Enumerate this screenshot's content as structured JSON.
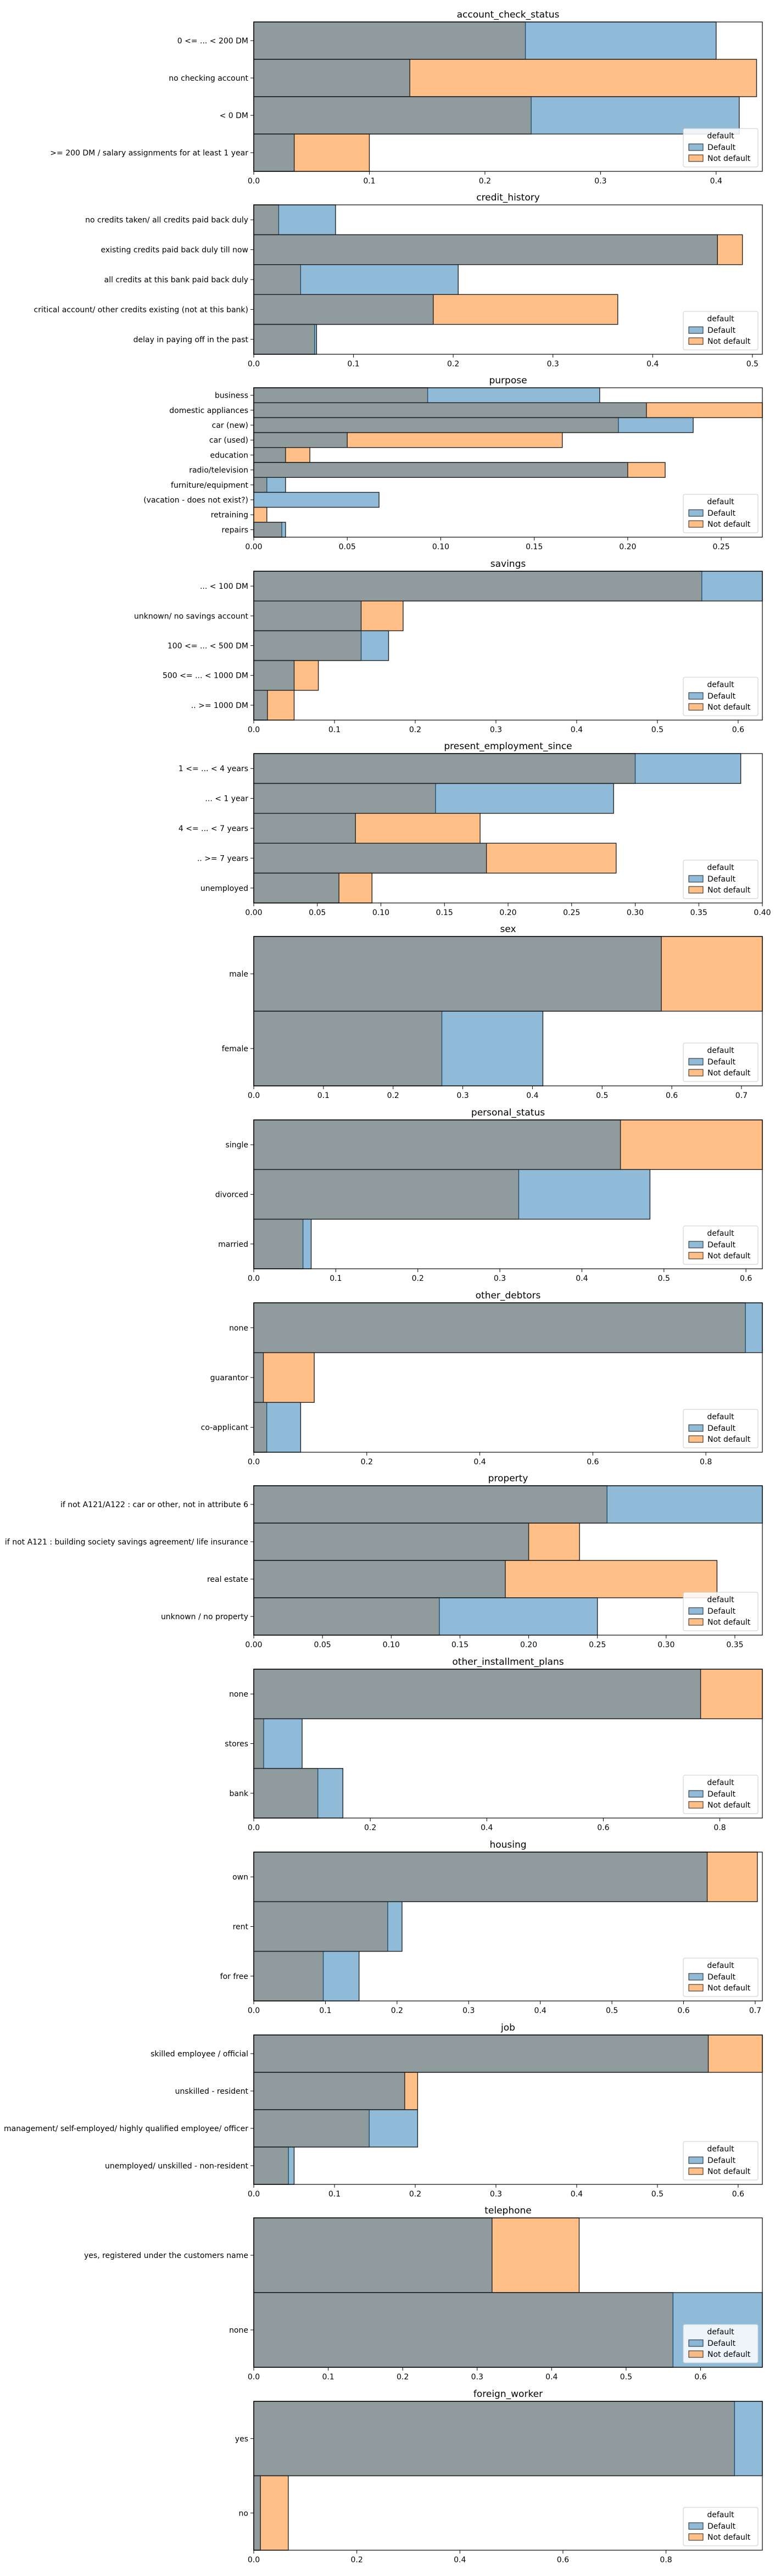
{
  "legend": {
    "title": "default",
    "items": [
      "Default",
      "Not default"
    ]
  },
  "colors": {
    "default_fill": "#1f77b4",
    "not_default_fill": "#ff7f0e",
    "overlap_hint": "#8b9497",
    "frame": "#000000"
  },
  "chart_data": [
    {
      "type": "bar",
      "orientation": "horizontal",
      "title": "account_check_status",
      "categories": [
        "0 <= ... < 200 DM",
        "no checking account",
        "< 0 DM",
        ">= 200 DM / salary assignments for at least 1 year"
      ],
      "series": [
        {
          "name": "Default",
          "values": [
            0.4,
            0.135,
            0.42,
            0.035
          ]
        },
        {
          "name": "Not default",
          "values": [
            0.235,
            0.435,
            0.24,
            0.1
          ]
        }
      ],
      "xticks": [
        "0.0",
        "0.1",
        "0.2",
        "0.3",
        "0.4"
      ],
      "xlim": [
        0,
        0.44
      ],
      "legend_position": "bottom-right"
    },
    {
      "type": "bar",
      "orientation": "horizontal",
      "title": "credit_history",
      "categories": [
        "no credits taken/ all credits paid back duly",
        "existing credits paid back duly till now",
        "all credits at this bank paid back duly",
        "critical account/ other credits existing (not at this bank)",
        "delay in paying off in the past"
      ],
      "series": [
        {
          "name": "Default",
          "values": [
            0.082,
            0.465,
            0.205,
            0.18,
            0.063
          ]
        },
        {
          "name": "Not default",
          "values": [
            0.025,
            0.49,
            0.047,
            0.365,
            0.061
          ]
        }
      ],
      "xticks": [
        "0.0",
        "0.1",
        "0.2",
        "0.3",
        "0.4",
        "0.5"
      ],
      "xlim": [
        0,
        0.51
      ],
      "legend_position": "bottom-right"
    },
    {
      "type": "bar",
      "orientation": "horizontal",
      "title": "purpose",
      "categories": [
        "business",
        "domestic appliances",
        "car (new)",
        "car (used)",
        "education",
        "radio/television",
        "furniture/equipment",
        "(vacation - does not exist?)",
        "retraining",
        "repairs"
      ],
      "series": [
        {
          "name": "Default",
          "values": [
            0.185,
            0.21,
            0.235,
            0.05,
            0.017,
            0.2,
            0.017,
            0.067,
            0.0,
            0.017
          ]
        },
        {
          "name": "Not default",
          "values": [
            0.093,
            0.272,
            0.195,
            0.165,
            0.03,
            0.22,
            0.007,
            0.0,
            0.007,
            0.015
          ]
        }
      ],
      "xticks": [
        "0.00",
        "0.05",
        "0.10",
        "0.15",
        "0.20",
        "0.25"
      ],
      "xlim": [
        0,
        0.272
      ],
      "legend_position": "bottom-right"
    },
    {
      "type": "bar",
      "orientation": "horizontal",
      "title": "savings",
      "categories": [
        "... < 100 DM",
        "unknown/ no savings account",
        "100 <= ... < 500 DM",
        "500 <= ... < 1000 DM",
        ".. >= 1000 DM"
      ],
      "series": [
        {
          "name": "Default",
          "values": [
            0.63,
            0.133,
            0.167,
            0.05,
            0.017
          ]
        },
        {
          "name": "Not default",
          "values": [
            0.555,
            0.185,
            0.133,
            0.08,
            0.05
          ]
        }
      ],
      "xticks": [
        "0.0",
        "0.1",
        "0.2",
        "0.3",
        "0.4",
        "0.5",
        "0.6"
      ],
      "xlim": [
        0,
        0.63
      ],
      "legend_position": "bottom-right"
    },
    {
      "type": "bar",
      "orientation": "horizontal",
      "title": "present_employment_since",
      "categories": [
        "1 <= ... < 4 years",
        "... < 1 year",
        "4 <= ... < 7 years",
        ".. >= 7 years",
        "unemployed"
      ],
      "series": [
        {
          "name": "Default",
          "values": [
            0.383,
            0.283,
            0.08,
            0.183,
            0.067
          ]
        },
        {
          "name": "Not default",
          "values": [
            0.3,
            0.143,
            0.178,
            0.285,
            0.093
          ]
        }
      ],
      "xticks": [
        "0.00",
        "0.05",
        "0.10",
        "0.15",
        "0.20",
        "0.25",
        "0.30",
        "0.35",
        "0.40"
      ],
      "xlim": [
        0,
        0.4
      ],
      "legend_position": "bottom-right"
    },
    {
      "type": "bar",
      "orientation": "horizontal",
      "title": "sex",
      "categories": [
        "male",
        "female"
      ],
      "series": [
        {
          "name": "Default",
          "values": [
            0.585,
            0.415
          ]
        },
        {
          "name": "Not default",
          "values": [
            0.73,
            0.27
          ]
        }
      ],
      "xticks": [
        "0.0",
        "0.1",
        "0.2",
        "0.3",
        "0.4",
        "0.5",
        "0.6",
        "0.7"
      ],
      "xlim": [
        0,
        0.73
      ],
      "legend_position": "bottom-right"
    },
    {
      "type": "bar",
      "orientation": "horizontal",
      "title": "personal_status",
      "categories": [
        "single",
        "divorced",
        "married"
      ],
      "series": [
        {
          "name": "Default",
          "values": [
            0.447,
            0.483,
            0.07
          ]
        },
        {
          "name": "Not default",
          "values": [
            0.62,
            0.323,
            0.06
          ]
        }
      ],
      "xticks": [
        "0.0",
        "0.1",
        "0.2",
        "0.3",
        "0.4",
        "0.5",
        "0.6"
      ],
      "xlim": [
        0,
        0.62
      ],
      "legend_position": "bottom-right"
    },
    {
      "type": "bar",
      "orientation": "horizontal",
      "title": "other_debtors",
      "categories": [
        "none",
        "guarantor",
        "co-applicant"
      ],
      "series": [
        {
          "name": "Default",
          "values": [
            0.9,
            0.017,
            0.083
          ]
        },
        {
          "name": "Not default",
          "values": [
            0.87,
            0.107,
            0.023
          ]
        }
      ],
      "xticks": [
        "0.0",
        "0.2",
        "0.4",
        "0.6",
        "0.8"
      ],
      "xlim": [
        0,
        0.9
      ],
      "legend_position": "bottom-right"
    },
    {
      "type": "bar",
      "orientation": "horizontal",
      "title": "property",
      "categories": [
        "if not A121/A122 : car or other, not in attribute 6",
        "if not A121 : building society savings agreement/ life insurance",
        "real estate",
        "unknown / no property"
      ],
      "series": [
        {
          "name": "Default",
          "values": [
            0.37,
            0.2,
            0.183,
            0.25
          ]
        },
        {
          "name": "Not default",
          "values": [
            0.257,
            0.237,
            0.337,
            0.135
          ]
        }
      ],
      "xticks": [
        "0.00",
        "0.05",
        "0.10",
        "0.15",
        "0.20",
        "0.25",
        "0.30",
        "0.35"
      ],
      "xlim": [
        0,
        0.37
      ],
      "legend_position": "bottom-right"
    },
    {
      "type": "bar",
      "orientation": "horizontal",
      "title": "other_installment_plans",
      "categories": [
        "none",
        "stores",
        "bank"
      ],
      "series": [
        {
          "name": "Default",
          "values": [
            0.767,
            0.083,
            0.153
          ]
        },
        {
          "name": "Not default",
          "values": [
            0.873,
            0.017,
            0.11
          ]
        }
      ],
      "xticks": [
        "0.0",
        "0.2",
        "0.4",
        "0.6",
        "0.8"
      ],
      "xlim": [
        0,
        0.873
      ],
      "legend_position": "bottom-right"
    },
    {
      "type": "bar",
      "orientation": "horizontal",
      "title": "housing",
      "categories": [
        "own",
        "rent",
        "for free"
      ],
      "series": [
        {
          "name": "Default",
          "values": [
            0.633,
            0.207,
            0.147
          ]
        },
        {
          "name": "Not default",
          "values": [
            0.703,
            0.187,
            0.097
          ]
        }
      ],
      "xticks": [
        "0.0",
        "0.1",
        "0.2",
        "0.3",
        "0.4",
        "0.5",
        "0.6",
        "0.7"
      ],
      "xlim": [
        0,
        0.71
      ],
      "legend_position": "bottom-right"
    },
    {
      "type": "bar",
      "orientation": "horizontal",
      "title": "job",
      "categories": [
        "skilled employee / official",
        "unskilled - resident",
        "management/ self-employed/ highly qualified employee/ officer",
        "unemployed/ unskilled - non-resident"
      ],
      "series": [
        {
          "name": "Default",
          "values": [
            0.563,
            0.187,
            0.203,
            0.05
          ]
        },
        {
          "name": "Not default",
          "values": [
            0.63,
            0.203,
            0.143,
            0.043
          ]
        }
      ],
      "xticks": [
        "0.0",
        "0.1",
        "0.2",
        "0.3",
        "0.4",
        "0.5",
        "0.6"
      ],
      "xlim": [
        0,
        0.63
      ],
      "legend_position": "bottom-right"
    },
    {
      "type": "bar",
      "orientation": "horizontal",
      "title": "telephone",
      "categories": [
        "yes, registered under the customers name",
        "none"
      ],
      "series": [
        {
          "name": "Default",
          "values": [
            0.32,
            0.683
          ]
        },
        {
          "name": "Not default",
          "values": [
            0.437,
            0.563
          ]
        }
      ],
      "xticks": [
        "0.0",
        "0.1",
        "0.2",
        "0.3",
        "0.4",
        "0.5",
        "0.6",
        "0.7"
      ],
      "xlim": [
        0,
        0.683
      ],
      "legend_position": "bottom-right"
    },
    {
      "type": "bar",
      "orientation": "horizontal",
      "title": "foreign_worker",
      "categories": [
        "yes",
        "no"
      ],
      "series": [
        {
          "name": "Default",
          "values": [
            0.987,
            0.013
          ]
        },
        {
          "name": "Not default",
          "values": [
            0.933,
            0.067
          ]
        }
      ],
      "xticks": [
        "0.0",
        "0.2",
        "0.4",
        "0.6",
        "0.8",
        "1.0"
      ],
      "xlim": [
        0,
        0.987
      ],
      "legend_position": "bottom-right"
    }
  ]
}
